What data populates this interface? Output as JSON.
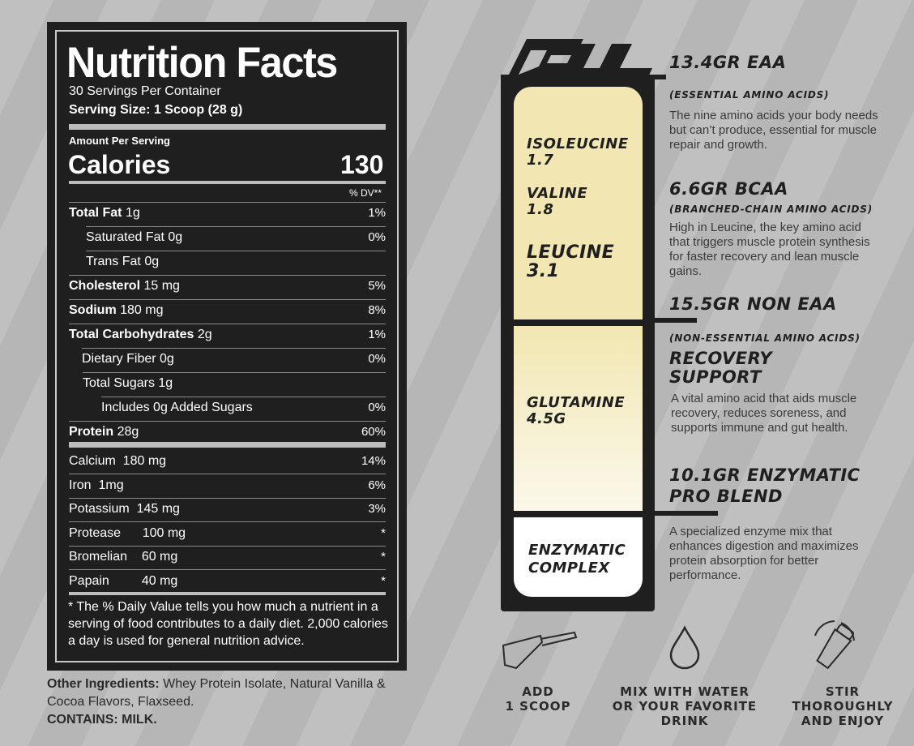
{
  "nutrition": {
    "title": "Nutrition Facts",
    "servings": "30 Servings Per Container",
    "serving_size": "Serving Size: 1 Scoop (28 g)",
    "amount_per_serving": "Amount Per Serving",
    "calories_label": "Calories",
    "calories_value": "130",
    "dv_header": "% DV**",
    "rows": [
      {
        "label_bold": "Total Fat",
        "label": "1g",
        "pct": "1%"
      },
      {
        "label_bold": "",
        "label": "Saturated Fat  0g",
        "pct": "0%"
      },
      {
        "label_bold": "",
        "label": "Trans Fat  0g",
        "pct": ""
      },
      {
        "label_bold": "Cholesterol",
        "label": "15 mg",
        "pct": "5%"
      },
      {
        "label_bold": "Sodium",
        "label": "180 mg",
        "pct": "8%"
      },
      {
        "label_bold": "Total Carbohydrates",
        "label": "2g",
        "pct": "1%"
      },
      {
        "label_bold": "",
        "label": "Dietary Fiber  0g",
        "pct": "0%"
      },
      {
        "label_bold": "",
        "label": "Total Sugars  1g",
        "pct": ""
      },
      {
        "label_bold": "",
        "label": "Includes 0g  Added Sugars",
        "pct": "0%"
      },
      {
        "label_bold": "Protein",
        "label": "28g",
        "pct": "60%"
      }
    ],
    "minerals": [
      {
        "label": "Calcium  180 mg",
        "pct": "14%"
      },
      {
        "label": "Iron  1mg",
        "pct": "6%"
      },
      {
        "label": "Potassium  145 mg",
        "pct": "3%"
      },
      {
        "label": "Protease      100 mg",
        "pct": "*"
      },
      {
        "label": "Bromelian    60 mg",
        "pct": "*"
      },
      {
        "label": "Papain         40 mg",
        "pct": "*"
      }
    ],
    "footnote": "* The % Daily Value tells you how much a nutrient in a serving of food contributes to a daily diet. 2,000 calories a day is used for general nutrition advice."
  },
  "ingredients": {
    "label": "Other Ingredients:",
    "text": " Whey Protein Isolate, Natural Vanilla & Cocoa Flavors, Flaxseed.",
    "contains": "CONTAINS: MILK."
  },
  "graphic": {
    "amino_eaa": [
      {
        "name": "ISOLEUCINE",
        "value": "1.7"
      },
      {
        "name": "VALINE",
        "value": "1.8"
      },
      {
        "name": "LEUCINE",
        "value": "3.1"
      }
    ],
    "glutamine": {
      "name": "GLUTAMINE",
      "value": "4.5G"
    },
    "enzymatic": {
      "line1": "ENZYMATIC",
      "line2": "COMPLEX"
    }
  },
  "sections": {
    "eaa": {
      "heading": "13.4GR EAA",
      "sub": "(ESSENTIAL AMINO ACIDS)",
      "desc": "The nine amino acids your body needs but can’t produce, essential for muscle repair and growth."
    },
    "bcaa": {
      "heading": "6.6GR BCAA",
      "sub": "(BRANCHED-CHAIN AMINO ACIDS)",
      "desc": "High in Leucine, the key amino acid that triggers muscle protein synthesis for faster recovery and lean muscle gains."
    },
    "neaa": {
      "heading": "15.5GR NON EAA",
      "sub": "(NON-ESSENTIAL AMINO ACIDS)",
      "heading2_line1": "RECOVERY",
      "heading2_line2": "SUPPORT",
      "desc": "A vital amino acid that aids muscle recovery, reduces soreness, and supports immune and gut health."
    },
    "enzyme": {
      "heading_line1": "10.1GR ENZYMATIC",
      "heading_line2": "PRO BLEND",
      "desc": "A specialized enzyme mix that enhances digestion and maximizes protein absorption for better performance."
    }
  },
  "steps": [
    {
      "icon": "scoop-icon",
      "line1": "ADD",
      "line2": "1 SCOOP",
      "line3": ""
    },
    {
      "icon": "water-drop-icon",
      "line1": "MIX WITH WATER",
      "line2": "OR YOUR FAVORITE",
      "line3": "DRINK"
    },
    {
      "icon": "shaker-icon",
      "line1": "STIR",
      "line2": "THOROUGHLY",
      "line3": "AND ENJOY"
    }
  ],
  "colors": {
    "dark": "#1f1f1f",
    "cream": "#f2e7b3",
    "background": "#bcbcbc"
  }
}
